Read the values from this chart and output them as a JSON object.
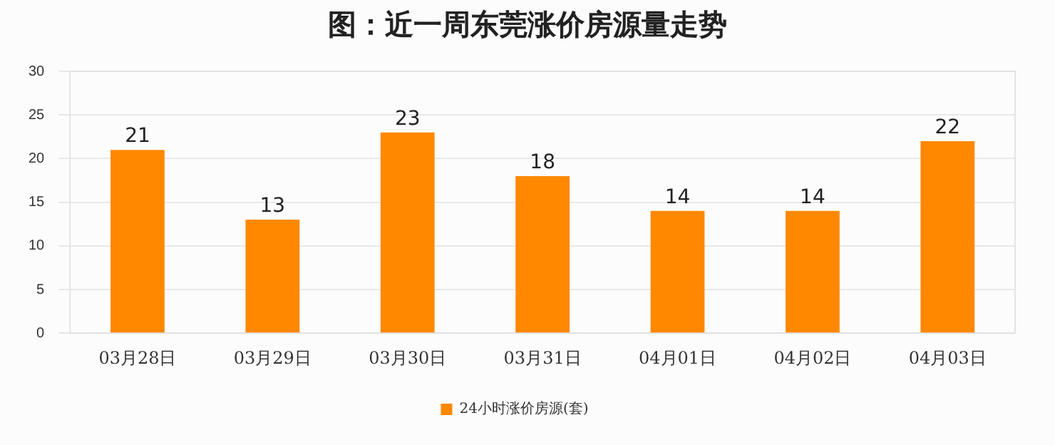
{
  "chart_data": {
    "type": "bar",
    "title": "图：近一周东莞涨价房源量走势",
    "categories": [
      "03月28日",
      "03月29日",
      "03月30日",
      "03月31日",
      "04月01日",
      "04月02日",
      "04月03日"
    ],
    "series": [
      {
        "name": "24小时涨价房源(套)",
        "color": "#ff8800",
        "values": [
          21,
          13,
          23,
          18,
          14,
          14,
          22
        ]
      }
    ],
    "ylim": [
      0,
      30
    ],
    "yticks": [
      0,
      5,
      10,
      15,
      20,
      25,
      30
    ],
    "grid": "y",
    "legend": "bottom",
    "data_labels": true
  }
}
